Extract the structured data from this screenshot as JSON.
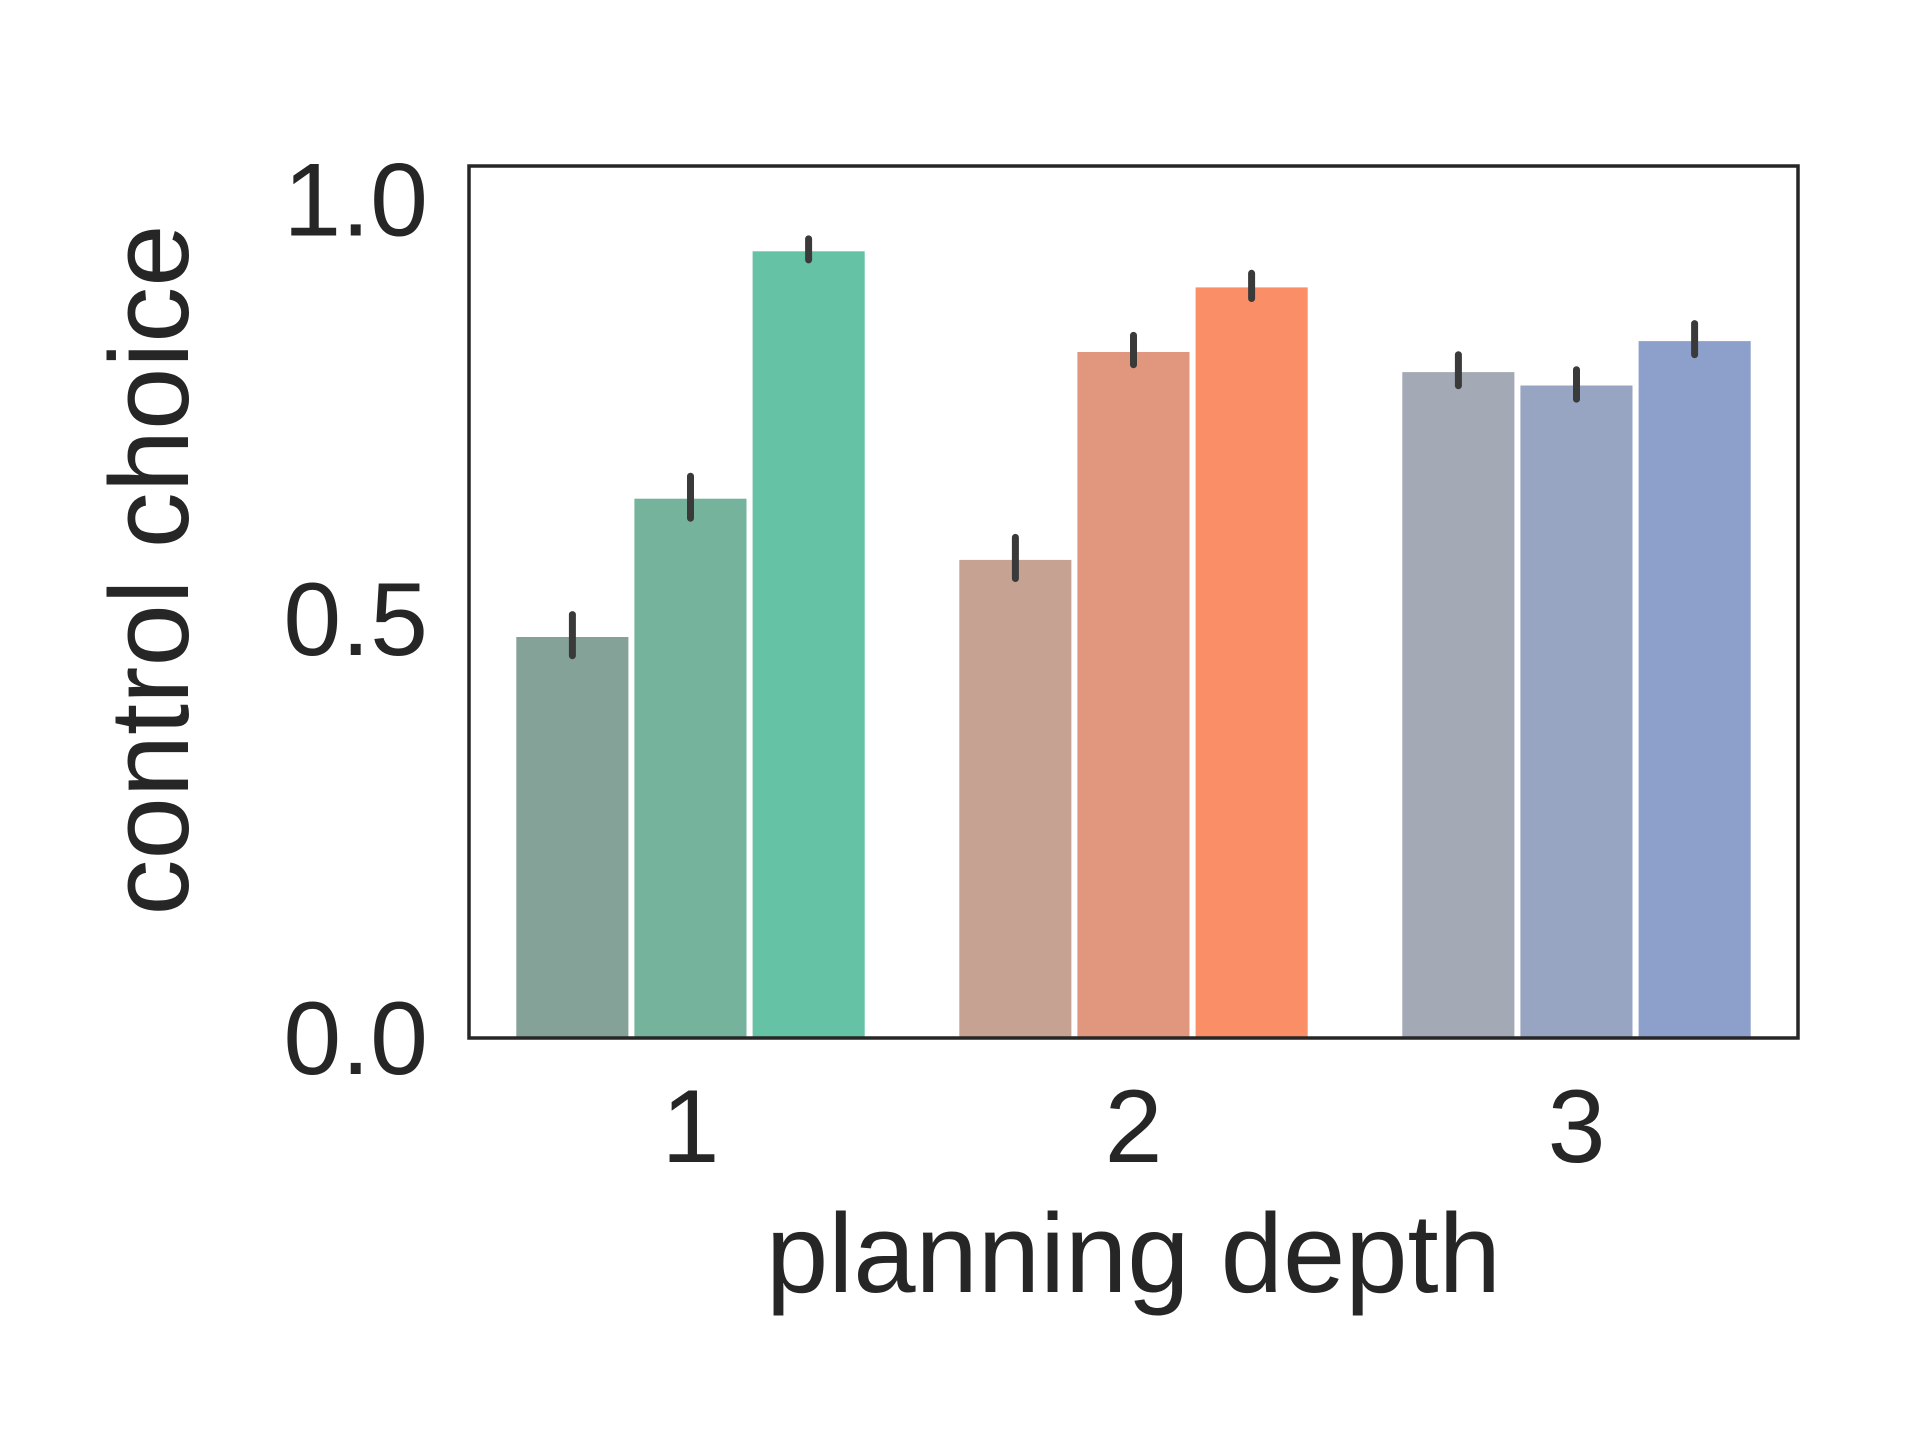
{
  "chart_data": {
    "type": "bar",
    "xlabel": "planning depth",
    "ylabel": "control choice",
    "categories": [
      "1",
      "2",
      "3"
    ],
    "ylim": [
      0,
      1.04
    ],
    "yticks": [
      "0.0",
      "0.5",
      "1.0"
    ],
    "ytick_values": [
      0,
      0.5,
      1.0
    ],
    "grid": false,
    "legend": "none",
    "groups": [
      {
        "category": "1",
        "bars": [
          {
            "value": 0.48,
            "err_low": 0.456,
            "err_high": 0.505,
            "color": "#85a298"
          },
          {
            "value": 0.645,
            "err_low": 0.62,
            "err_high": 0.67,
            "color": "#76b39d"
          },
          {
            "value": 0.94,
            "err_low": 0.928,
            "err_high": 0.953,
            "color": "#66c2a5"
          }
        ]
      },
      {
        "category": "2",
        "bars": [
          {
            "value": 0.572,
            "err_low": 0.548,
            "err_high": 0.597,
            "color": "#c6a293"
          },
          {
            "value": 0.82,
            "err_low": 0.803,
            "err_high": 0.838,
            "color": "#e0977d"
          },
          {
            "value": 0.897,
            "err_low": 0.882,
            "err_high": 0.912,
            "color": "#fa8e66"
          }
        ]
      },
      {
        "category": "3",
        "bars": [
          {
            "value": 0.796,
            "err_low": 0.778,
            "err_high": 0.815,
            "color": "#a4a9b6"
          },
          {
            "value": 0.78,
            "err_low": 0.762,
            "err_high": 0.797,
            "color": "#97a4c2"
          },
          {
            "value": 0.833,
            "err_low": 0.815,
            "err_high": 0.852,
            "color": "#8da0cb"
          }
        ]
      }
    ]
  }
}
